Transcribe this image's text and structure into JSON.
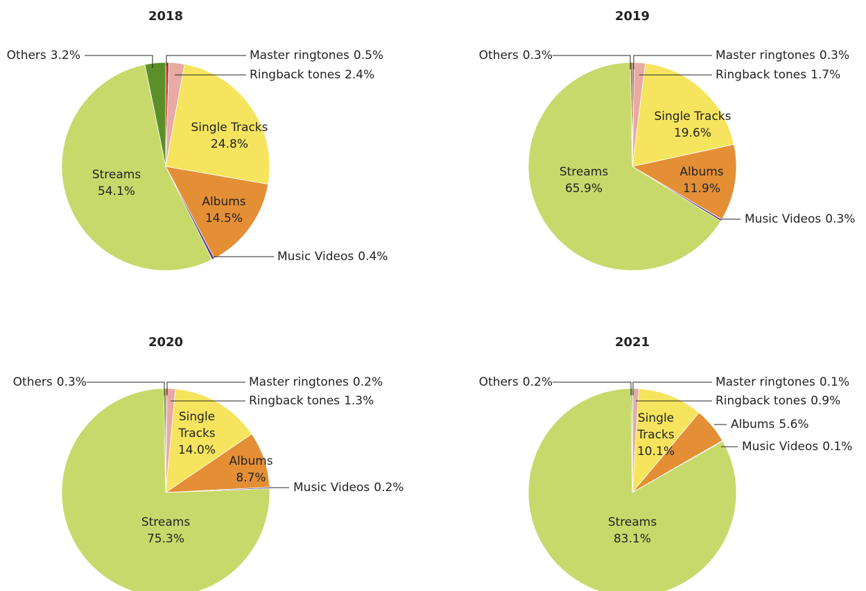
{
  "chart_data": [
    {
      "type": "pie",
      "title": "2018",
      "categories": [
        "Master ringtones",
        "Ringback tones",
        "Single Tracks",
        "Albums",
        "Music Videos",
        "Streams",
        "Others"
      ],
      "values": [
        0.5,
        2.4,
        24.8,
        14.5,
        0.4,
        54.1,
        3.2
      ],
      "value_labels": [
        "0.5%",
        "2.4%",
        "24.8%",
        "14.5%",
        "0.4%",
        "54.1%",
        "3.2%"
      ],
      "colors": [
        "#c0392b",
        "#e8aaa2",
        "#f6e45e",
        "#e48f36",
        "#5b3f8c",
        "#c8d96b",
        "#5a8f2a"
      ]
    },
    {
      "type": "pie",
      "title": "2019",
      "categories": [
        "Master ringtones",
        "Ringback tones",
        "Single Tracks",
        "Albums",
        "Music Videos",
        "Streams",
        "Others"
      ],
      "values": [
        0.3,
        1.7,
        19.6,
        11.9,
        0.3,
        65.9,
        0.3
      ],
      "value_labels": [
        "0.3%",
        "1.7%",
        "19.6%",
        "11.9%",
        "0.3%",
        "65.9%",
        "0.3%"
      ],
      "colors": [
        "#c0392b",
        "#e8aaa2",
        "#f6e45e",
        "#e48f36",
        "#5b3f8c",
        "#c8d96b",
        "#5a8f2a"
      ]
    },
    {
      "type": "pie",
      "title": "2020",
      "categories": [
        "Master ringtones",
        "Ringback tones",
        "Single Tracks",
        "Albums",
        "Music Videos",
        "Streams",
        "Others"
      ],
      "values": [
        0.2,
        1.3,
        14.0,
        8.7,
        0.2,
        75.3,
        0.3
      ],
      "value_labels": [
        "0.2%",
        "1.3%",
        "14.0%",
        "8.7%",
        "0.2%",
        "75.3%",
        "0.3%"
      ],
      "colors": [
        "#c0392b",
        "#e8aaa2",
        "#f6e45e",
        "#e48f36",
        "#5b3f8c",
        "#c8d96b",
        "#5a8f2a"
      ]
    },
    {
      "type": "pie",
      "title": "2021",
      "categories": [
        "Master ringtones",
        "Ringback tones",
        "Single Tracks",
        "Albums",
        "Music Videos",
        "Streams",
        "Others"
      ],
      "values": [
        0.1,
        0.9,
        10.1,
        5.6,
        0.1,
        83.1,
        0.2
      ],
      "value_labels": [
        "0.1%",
        "0.9%",
        "10.1%",
        "5.6%",
        "0.1%",
        "83.1%",
        "0.2%"
      ],
      "colors": [
        "#c0392b",
        "#e8aaa2",
        "#f6e45e",
        "#e48f36",
        "#5b3f8c",
        "#c8d96b",
        "#5a8f2a"
      ]
    }
  ]
}
